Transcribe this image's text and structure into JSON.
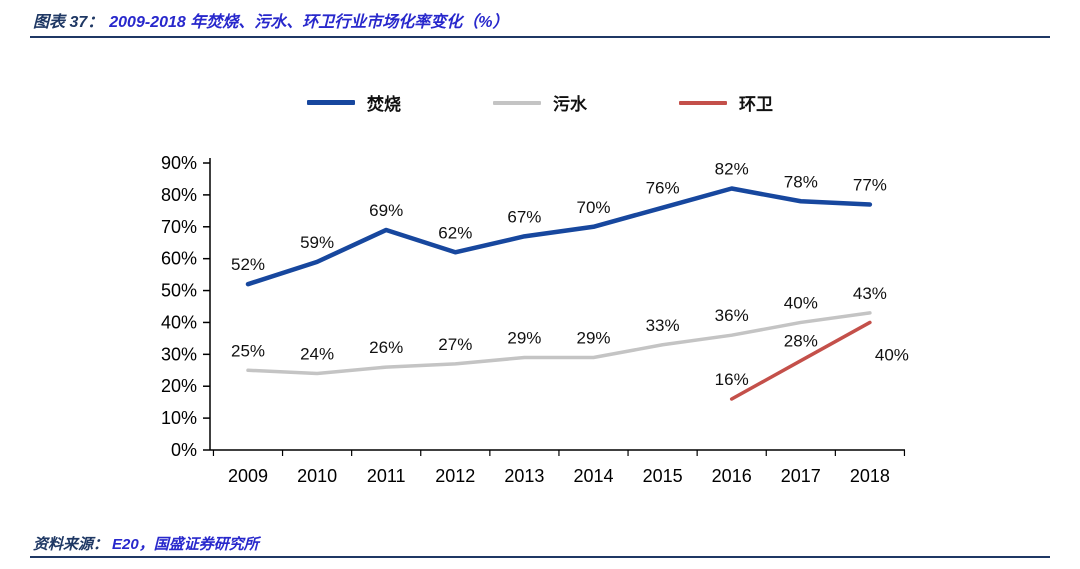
{
  "header": {
    "label": "图表 37：",
    "title": "2009-2018 年焚烧、污水、环卫行业市场化率变化（%）"
  },
  "footer": {
    "label": "资料来源：",
    "source": "E20，国盛证券研究所"
  },
  "chart_data": {
    "type": "line",
    "title": "2009-2018 年焚烧、污水、环卫行业市场化率变化（%）",
    "categories": [
      "2009",
      "2010",
      "2011",
      "2012",
      "2013",
      "2014",
      "2015",
      "2016",
      "2017",
      "2018"
    ],
    "series": [
      {
        "name": "焚烧",
        "color": "#17479E",
        "values": [
          52,
          59,
          69,
          62,
          67,
          70,
          76,
          82,
          78,
          77
        ]
      },
      {
        "name": "污水",
        "color": "#C4C4C4",
        "values": [
          25,
          24,
          26,
          27,
          29,
          29,
          33,
          36,
          40,
          43
        ]
      },
      {
        "name": "环卫",
        "color": "#C4504A",
        "values": [
          null,
          null,
          null,
          null,
          null,
          null,
          null,
          16,
          28,
          40
        ]
      }
    ],
    "ylim": [
      0,
      90
    ],
    "ytick_step": 10,
    "ytick_labels": [
      "0%",
      "10%",
      "20%",
      "30%",
      "40%",
      "50%",
      "60%",
      "70%",
      "80%",
      "90%"
    ],
    "value_label_suffix": "%",
    "legend_position": "top",
    "grid": false
  }
}
